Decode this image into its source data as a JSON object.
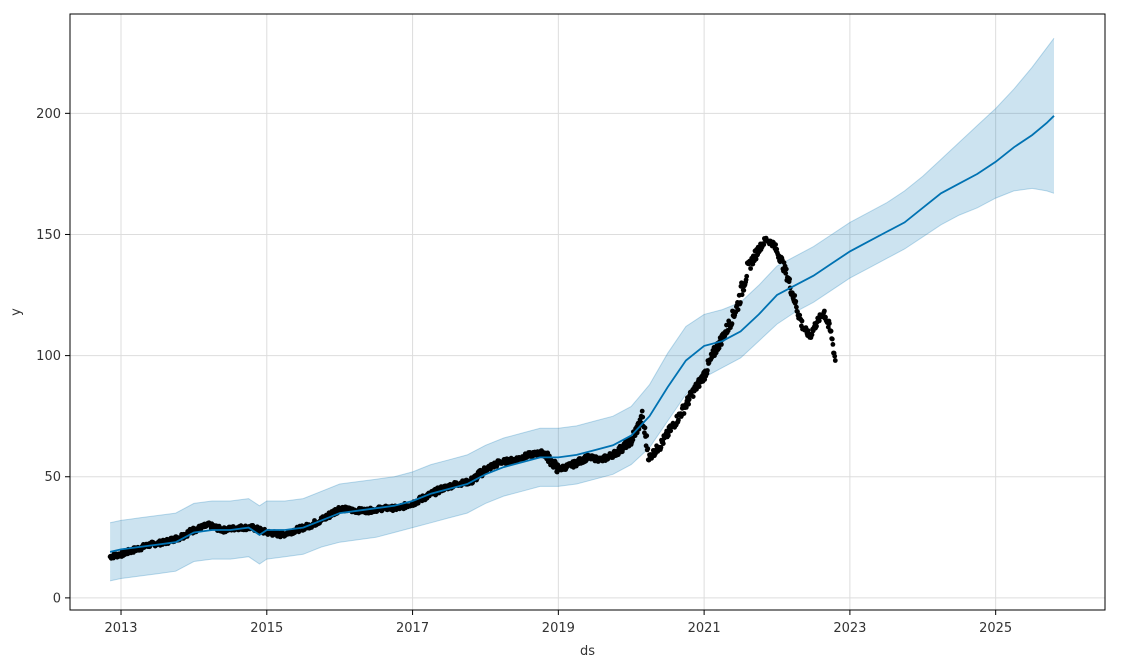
{
  "chart_data": {
    "type": "line",
    "title": "",
    "xlabel": "ds",
    "ylabel": "y",
    "xlim": [
      2012.3,
      2026.5
    ],
    "ylim": [
      -5,
      241
    ],
    "grid": true,
    "x_ticks": [
      2013,
      2015,
      2017,
      2019,
      2021,
      2023,
      2025
    ],
    "y_ticks": [
      0,
      50,
      100,
      150,
      200
    ],
    "colors": {
      "forecast_line": "#0072B2",
      "uncertainty_band": "#0072B2",
      "observations": "#000000",
      "grid": "#dddddd",
      "frame": "#000000"
    },
    "series": [
      {
        "kind": "forecast",
        "x": [
          2012.85,
          2013.0,
          2013.25,
          2013.5,
          2013.75,
          2014.0,
          2014.25,
          2014.5,
          2014.75,
          2014.9,
          2015.0,
          2015.25,
          2015.5,
          2015.75,
          2016.0,
          2016.25,
          2016.5,
          2016.75,
          2017.0,
          2017.25,
          2017.5,
          2017.75,
          2018.0,
          2018.25,
          2018.5,
          2018.75,
          2019.0,
          2019.25,
          2019.5,
          2019.75,
          2020.0,
          2020.25,
          2020.5,
          2020.75,
          2021.0,
          2021.25,
          2021.5,
          2021.75,
          2022.0,
          2022.25,
          2022.5,
          2022.75,
          2023.0,
          2023.25,
          2023.5,
          2023.75,
          2024.0,
          2024.25,
          2024.5,
          2024.75,
          2025.0,
          2025.25,
          2025.5,
          2025.7,
          2025.8
        ],
        "values": [
          19,
          20,
          21,
          22,
          23,
          27,
          28,
          28,
          29,
          26,
          28,
          28,
          29,
          32,
          35,
          36,
          37,
          38,
          40,
          43,
          45,
          47,
          51,
          54,
          56,
          58,
          58,
          59,
          61,
          63,
          67,
          75,
          87,
          98,
          104,
          106,
          110,
          117,
          125,
          129,
          133,
          138,
          143,
          147,
          151,
          155,
          161,
          167,
          171,
          175,
          180,
          186,
          191,
          196,
          199
        ],
        "lower": [
          7,
          8,
          9,
          10,
          11,
          15,
          16,
          16,
          17,
          14,
          16,
          17,
          18,
          21,
          23,
          24,
          25,
          27,
          29,
          31,
          33,
          35,
          39,
          42,
          44,
          46,
          46,
          47,
          49,
          51,
          55,
          62,
          73,
          84,
          91,
          95,
          99,
          106,
          113,
          118,
          122,
          127,
          132,
          136,
          140,
          144,
          149,
          154,
          158,
          161,
          165,
          168,
          169,
          168,
          167
        ],
        "upper": [
          31,
          32,
          33,
          34,
          35,
          39,
          40,
          40,
          41,
          38,
          40,
          40,
          41,
          44,
          47,
          48,
          49,
          50,
          52,
          55,
          57,
          59,
          63,
          66,
          68,
          70,
          70,
          71,
          73,
          75,
          79,
          88,
          101,
          112,
          117,
          119,
          122,
          129,
          137,
          141,
          145,
          150,
          155,
          159,
          163,
          168,
          174,
          181,
          188,
          195,
          202,
          210,
          219,
          227,
          231
        ]
      },
      {
        "kind": "observed",
        "x": [
          2012.85,
          2013.0,
          2013.2,
          2013.4,
          2013.6,
          2013.8,
          2014.0,
          2014.2,
          2014.4,
          2014.6,
          2014.8,
          2015.0,
          2015.2,
          2015.4,
          2015.6,
          2015.8,
          2016.0,
          2016.2,
          2016.4,
          2016.6,
          2016.8,
          2017.0,
          2017.2,
          2017.4,
          2017.6,
          2017.8,
          2018.0,
          2018.2,
          2018.4,
          2018.6,
          2018.8,
          2019.0,
          2019.2,
          2019.4,
          2019.6,
          2019.8,
          2020.0,
          2020.15,
          2020.25,
          2020.4,
          2020.55,
          2020.7,
          2020.85,
          2021.0,
          2021.15,
          2021.3,
          2021.45,
          2021.6,
          2021.75,
          2021.85,
          2021.95,
          2022.05,
          2022.15,
          2022.25,
          2022.35,
          2022.45,
          2022.55,
          2022.65,
          2022.75,
          2022.8
        ],
        "values": [
          17,
          18,
          20,
          22,
          23,
          25,
          28,
          30,
          28,
          29,
          29,
          27,
          26,
          28,
          30,
          33,
          37,
          36,
          36,
          37,
          37,
          39,
          42,
          45,
          47,
          48,
          53,
          56,
          57,
          59,
          60,
          53,
          55,
          58,
          57,
          60,
          65,
          74,
          58,
          63,
          70,
          77,
          85,
          92,
          102,
          110,
          120,
          136,
          144,
          148,
          146,
          140,
          132,
          122,
          112,
          108,
          114,
          118,
          108,
          98
        ]
      }
    ]
  }
}
